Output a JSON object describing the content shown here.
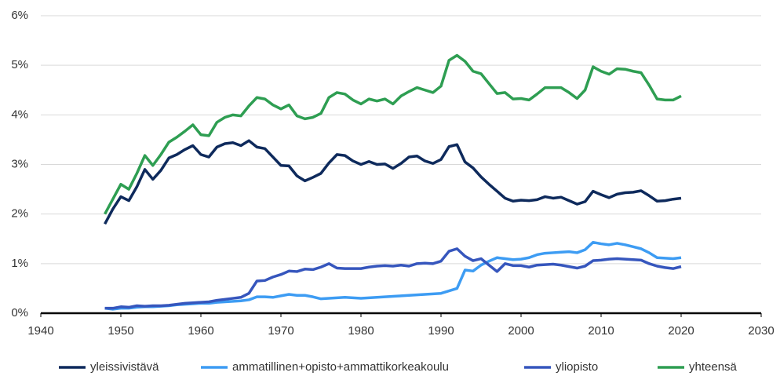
{
  "chart_data": {
    "type": "line",
    "x": [
      1948,
      1949,
      1950,
      1951,
      1952,
      1953,
      1954,
      1955,
      1956,
      1957,
      1958,
      1959,
      1960,
      1961,
      1962,
      1963,
      1964,
      1965,
      1966,
      1967,
      1968,
      1969,
      1970,
      1971,
      1972,
      1973,
      1974,
      1975,
      1976,
      1977,
      1978,
      1979,
      1980,
      1981,
      1982,
      1983,
      1984,
      1985,
      1986,
      1987,
      1988,
      1989,
      1990,
      1991,
      1992,
      1993,
      1994,
      1995,
      1996,
      1997,
      1998,
      1999,
      2000,
      2001,
      2002,
      2003,
      2004,
      2005,
      2006,
      2007,
      2008,
      2009,
      2010,
      2011,
      2012,
      2013,
      2014,
      2015,
      2016,
      2017,
      2018,
      2019,
      2020
    ],
    "series": [
      {
        "name": "yleissivistävä",
        "color": "#0e2a5c",
        "values": [
          1.8,
          2.1,
          2.35,
          2.27,
          2.55,
          2.9,
          2.7,
          2.88,
          3.13,
          3.2,
          3.3,
          3.38,
          3.2,
          3.15,
          3.35,
          3.42,
          3.44,
          3.38,
          3.48,
          3.35,
          3.32,
          3.15,
          2.98,
          2.97,
          2.77,
          2.67,
          2.74,
          2.82,
          3.03,
          3.2,
          3.18,
          3.07,
          3.0,
          3.06,
          3.0,
          3.01,
          2.92,
          3.02,
          3.15,
          3.17,
          3.07,
          3.02,
          3.1,
          3.36,
          3.4,
          3.05,
          2.93,
          2.75,
          2.6,
          2.46,
          2.32,
          2.26,
          2.28,
          2.27,
          2.29,
          2.35,
          2.32,
          2.34,
          2.27,
          2.2,
          2.25,
          2.46,
          2.39,
          2.33,
          2.4,
          2.43,
          2.44,
          2.47,
          2.37,
          2.26,
          2.27,
          2.3,
          2.32
        ]
      },
      {
        "name": "ammatillinen+opisto+ammattikorkeakoulu",
        "color": "#3d9cf3",
        "values": [
          0.1,
          0.08,
          0.1,
          0.1,
          0.12,
          0.13,
          0.13,
          0.14,
          0.15,
          0.17,
          0.18,
          0.19,
          0.2,
          0.2,
          0.22,
          0.23,
          0.24,
          0.25,
          0.27,
          0.33,
          0.33,
          0.32,
          0.35,
          0.38,
          0.36,
          0.36,
          0.33,
          0.29,
          0.3,
          0.31,
          0.32,
          0.31,
          0.3,
          0.31,
          0.32,
          0.33,
          0.34,
          0.35,
          0.36,
          0.37,
          0.38,
          0.39,
          0.4,
          0.45,
          0.5,
          0.87,
          0.85,
          0.97,
          1.05,
          1.12,
          1.1,
          1.08,
          1.09,
          1.12,
          1.18,
          1.21,
          1.22,
          1.23,
          1.24,
          1.22,
          1.28,
          1.43,
          1.4,
          1.38,
          1.41,
          1.38,
          1.34,
          1.3,
          1.22,
          1.12,
          1.11,
          1.1,
          1.12
        ]
      },
      {
        "name": "yliopisto",
        "color": "#3656bd",
        "values": [
          0.1,
          0.1,
          0.13,
          0.12,
          0.15,
          0.14,
          0.15,
          0.15,
          0.16,
          0.18,
          0.2,
          0.21,
          0.22,
          0.23,
          0.26,
          0.28,
          0.3,
          0.32,
          0.4,
          0.65,
          0.66,
          0.73,
          0.78,
          0.85,
          0.84,
          0.89,
          0.88,
          0.93,
          1.0,
          0.91,
          0.9,
          0.9,
          0.9,
          0.93,
          0.95,
          0.96,
          0.95,
          0.97,
          0.95,
          1.0,
          1.01,
          1.0,
          1.05,
          1.25,
          1.3,
          1.15,
          1.06,
          1.1,
          0.97,
          0.84,
          1.0,
          0.96,
          0.96,
          0.93,
          0.97,
          0.98,
          0.99,
          0.97,
          0.94,
          0.91,
          0.95,
          1.06,
          1.07,
          1.09,
          1.1,
          1.09,
          1.08,
          1.07,
          1.0,
          0.95,
          0.92,
          0.9,
          0.94
        ]
      },
      {
        "name": "yhteensä",
        "color": "#2e9e52",
        "values": [
          2.0,
          2.3,
          2.6,
          2.5,
          2.82,
          3.18,
          2.98,
          3.2,
          3.45,
          3.55,
          3.67,
          3.8,
          3.6,
          3.58,
          3.85,
          3.95,
          4.0,
          3.98,
          4.18,
          4.35,
          4.32,
          4.2,
          4.12,
          4.2,
          3.98,
          3.92,
          3.95,
          4.03,
          4.35,
          4.45,
          4.42,
          4.3,
          4.22,
          4.32,
          4.28,
          4.32,
          4.22,
          4.38,
          4.47,
          4.55,
          4.5,
          4.45,
          4.58,
          5.1,
          5.2,
          5.08,
          4.88,
          4.83,
          4.63,
          4.43,
          4.45,
          4.32,
          4.33,
          4.3,
          4.42,
          4.55,
          4.55,
          4.55,
          4.45,
          4.33,
          4.5,
          4.97,
          4.88,
          4.82,
          4.93,
          4.92,
          4.88,
          4.85,
          4.6,
          4.32,
          4.3,
          4.3,
          4.38
        ]
      }
    ],
    "xlim": [
      1940,
      2030
    ],
    "xticks": [
      1940,
      1950,
      1960,
      1970,
      1980,
      1990,
      2000,
      2010,
      2020,
      2030
    ],
    "ylim": [
      0,
      6
    ],
    "yticks": [
      {
        "value": 0,
        "label": "0%"
      },
      {
        "value": 1,
        "label": "1%"
      },
      {
        "value": 2,
        "label": "2%"
      },
      {
        "value": 3,
        "label": "3%"
      },
      {
        "value": 4,
        "label": "4%"
      },
      {
        "value": 5,
        "label": "5%"
      },
      {
        "value": 6,
        "label": "6%"
      }
    ],
    "grid": true,
    "legend": "bottom"
  }
}
